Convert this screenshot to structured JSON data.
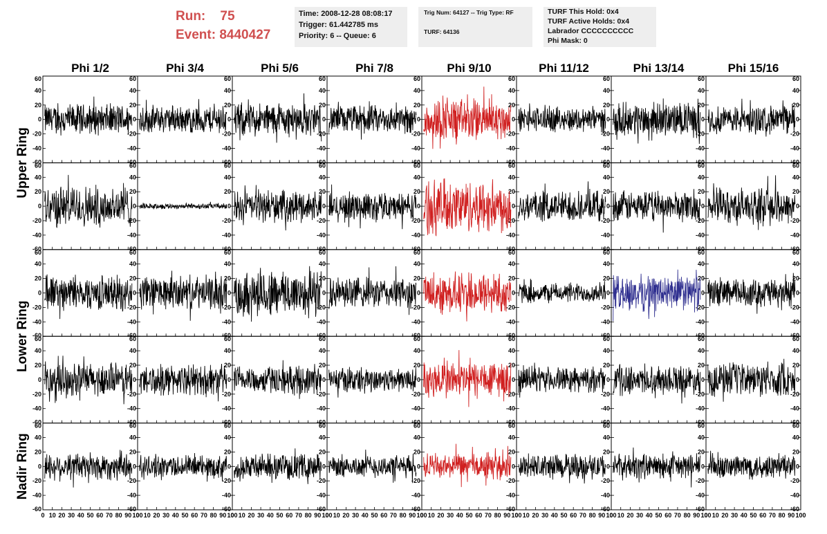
{
  "run": {
    "label": "Run:",
    "value": "75"
  },
  "event": {
    "label": "Event:",
    "value": "8440427"
  },
  "time_info": {
    "time": "Time: 2008-12-28 08:08:17",
    "trigger": "Trigger: 61.442785 ms",
    "priority": "Priority: 6 -- Queue: 6"
  },
  "trig_info": {
    "trig": "Trig Num: 64127 -- Trig Type: RF",
    "turf": "TURF: 64136"
  },
  "turf_info": {
    "this_hold": "TURF This Hold: 0x4",
    "active_holds": "TURF Active Holds: 0x4",
    "labrador": "Labrador CCCCCCCCCC",
    "phi_mask": "Phi Mask: 0"
  },
  "columns": [
    "Phi 1/2",
    "Phi 3/4",
    "Phi 5/6",
    "Phi 7/8",
    "Phi 9/10",
    "Phi 11/12",
    "Phi 13/14",
    "Phi 15/16"
  ],
  "row_groups": [
    {
      "label": "Upper Ring",
      "rows": [
        0,
        1
      ]
    },
    {
      "label": "Lower Ring",
      "rows": [
        2,
        3
      ]
    },
    {
      "label": "Nadir Ring",
      "rows": [
        4
      ]
    }
  ],
  "y_ticks": [
    "60",
    "40",
    "20",
    "0",
    "-20",
    "-40",
    "-60"
  ],
  "x_ticks": [
    "0",
    "10",
    "20",
    "30",
    "40",
    "50",
    "60",
    "70",
    "80",
    "90",
    "100"
  ],
  "colors": {
    "normal": "#000000",
    "trigger": "#d02020",
    "blue": "#303090",
    "title": "#d05050"
  },
  "chart_data": {
    "type": "line",
    "xlim": [
      0,
      100
    ],
    "ylim": [
      -60,
      60
    ],
    "panels": [
      [
        {
          "color": "normal",
          "amp": 22
        },
        {
          "color": "normal",
          "amp": 20
        },
        {
          "color": "normal",
          "amp": 24
        },
        {
          "color": "normal",
          "amp": 20
        },
        {
          "color": "trigger",
          "amp": 30
        },
        {
          "color": "normal",
          "amp": 18
        },
        {
          "color": "normal",
          "amp": 24
        },
        {
          "color": "normal",
          "amp": 20
        }
      ],
      [
        {
          "color": "normal",
          "amp": 30
        },
        {
          "color": "normal",
          "amp": 4
        },
        {
          "color": "normal",
          "amp": 22
        },
        {
          "color": "normal",
          "amp": 20
        },
        {
          "color": "trigger",
          "amp": 38
        },
        {
          "color": "normal",
          "amp": 22
        },
        {
          "color": "normal",
          "amp": 22
        },
        {
          "color": "normal",
          "amp": 26
        }
      ],
      [
        {
          "color": "normal",
          "amp": 24
        },
        {
          "color": "normal",
          "amp": 24
        },
        {
          "color": "normal",
          "amp": 34
        },
        {
          "color": "normal",
          "amp": 22
        },
        {
          "color": "trigger",
          "amp": 30
        },
        {
          "color": "normal",
          "amp": 14
        },
        {
          "color": "blue",
          "amp": 26
        },
        {
          "color": "normal",
          "amp": 20
        }
      ],
      [
        {
          "color": "normal",
          "amp": 24
        },
        {
          "color": "normal",
          "amp": 22
        },
        {
          "color": "normal",
          "amp": 20
        },
        {
          "color": "normal",
          "amp": 18
        },
        {
          "color": "trigger",
          "amp": 28
        },
        {
          "color": "normal",
          "amp": 18
        },
        {
          "color": "normal",
          "amp": 20
        },
        {
          "color": "normal",
          "amp": 24
        }
      ],
      [
        {
          "color": "normal",
          "amp": 20
        },
        {
          "color": "normal",
          "amp": 16
        },
        {
          "color": "normal",
          "amp": 18
        },
        {
          "color": "normal",
          "amp": 16
        },
        {
          "color": "trigger",
          "amp": 18
        },
        {
          "color": "normal",
          "amp": 18
        },
        {
          "color": "normal",
          "amp": 18
        },
        {
          "color": "normal",
          "amp": 18
        }
      ]
    ]
  }
}
